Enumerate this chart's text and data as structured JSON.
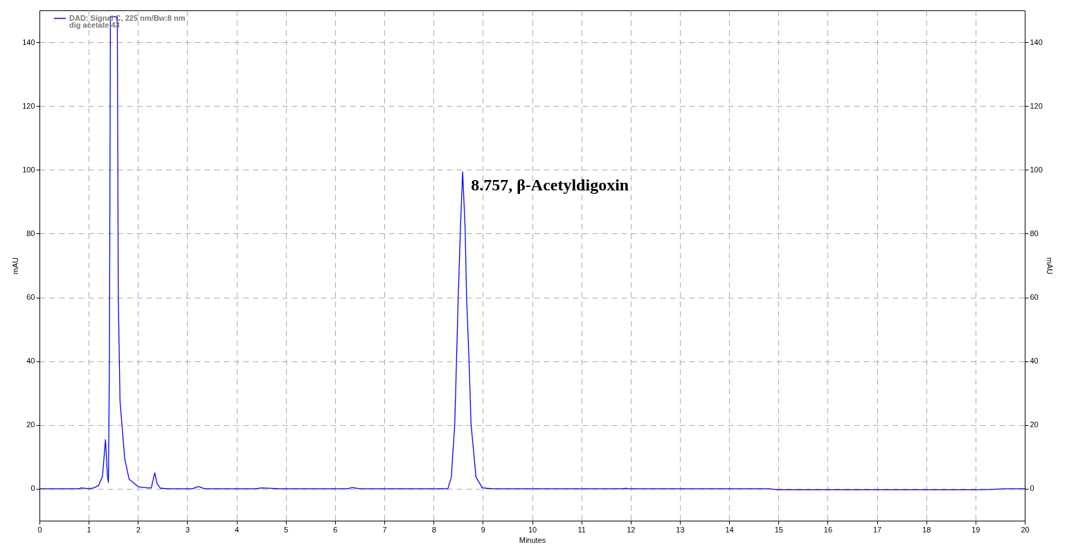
{
  "chart_data": {
    "type": "line",
    "xlabel": "Minutes",
    "ylabel": "mAU",
    "y2label": "mAU",
    "xlim": [
      0,
      20
    ],
    "xticks": [
      0,
      1,
      2,
      3,
      4,
      5,
      6,
      7,
      8,
      9,
      10,
      11,
      12,
      13,
      14,
      15,
      16,
      17,
      18,
      19,
      20
    ],
    "ylim": [
      -10,
      150
    ],
    "yticks": [
      0,
      20,
      40,
      60,
      80,
      100,
      120,
      140
    ],
    "y2lim": [
      -10,
      150
    ],
    "y2ticks": [
      0,
      20,
      40,
      60,
      80,
      100,
      120,
      140
    ],
    "grid": true,
    "legend": "top left",
    "line_style": "solid",
    "series": [
      {
        "name": "DAD: Signal C, 225 nm/Bw:8 nm",
        "color": "#0000ff",
        "x": [
          0,
          0.8,
          0.85,
          1.0,
          1.1,
          1.2,
          1.28,
          1.34,
          1.38,
          1.4,
          1.42,
          1.44,
          1.58,
          1.6,
          1.635,
          1.73,
          1.82,
          2.01,
          2.2,
          2.27,
          2.34,
          2.39,
          2.455,
          2.6,
          3.1,
          3.23,
          3.35,
          4.4,
          4.5,
          4.9,
          6.25,
          6.35,
          6.5,
          8.2,
          8.29,
          8.36,
          8.43,
          8.465,
          8.5,
          8.545,
          8.59,
          8.64,
          8.67,
          8.72,
          8.76,
          8.86,
          8.99,
          9.2,
          11.85,
          11.9,
          11.95,
          14.8,
          15.0,
          16.0,
          17.0,
          18.0,
          19.0,
          19.3,
          19.6,
          20
        ],
        "values": [
          0,
          0,
          0.3,
          0,
          0.3,
          1,
          4,
          15.4,
          4,
          2,
          40,
          148,
          148,
          60,
          27.5,
          9.5,
          3,
          0.6,
          0.3,
          0.3,
          5,
          1.5,
          0.2,
          0,
          0,
          0.7,
          0,
          0,
          0.3,
          0,
          0,
          0.4,
          0,
          0,
          0,
          3.7,
          20.4,
          40,
          60,
          81.7,
          99.4,
          81.7,
          60,
          40,
          20.4,
          3.7,
          0.3,
          0,
          0,
          0.2,
          0,
          0,
          -0.3,
          -0.3,
          -0.3,
          -0.3,
          -0.3,
          -0.2,
          0,
          0
        ]
      }
    ],
    "annotations": [
      "dig acetate 43",
      {
        "text": "8.757, β-Acetyldigoxin",
        "x": 8.59,
        "y": 99.4
      }
    ]
  }
}
